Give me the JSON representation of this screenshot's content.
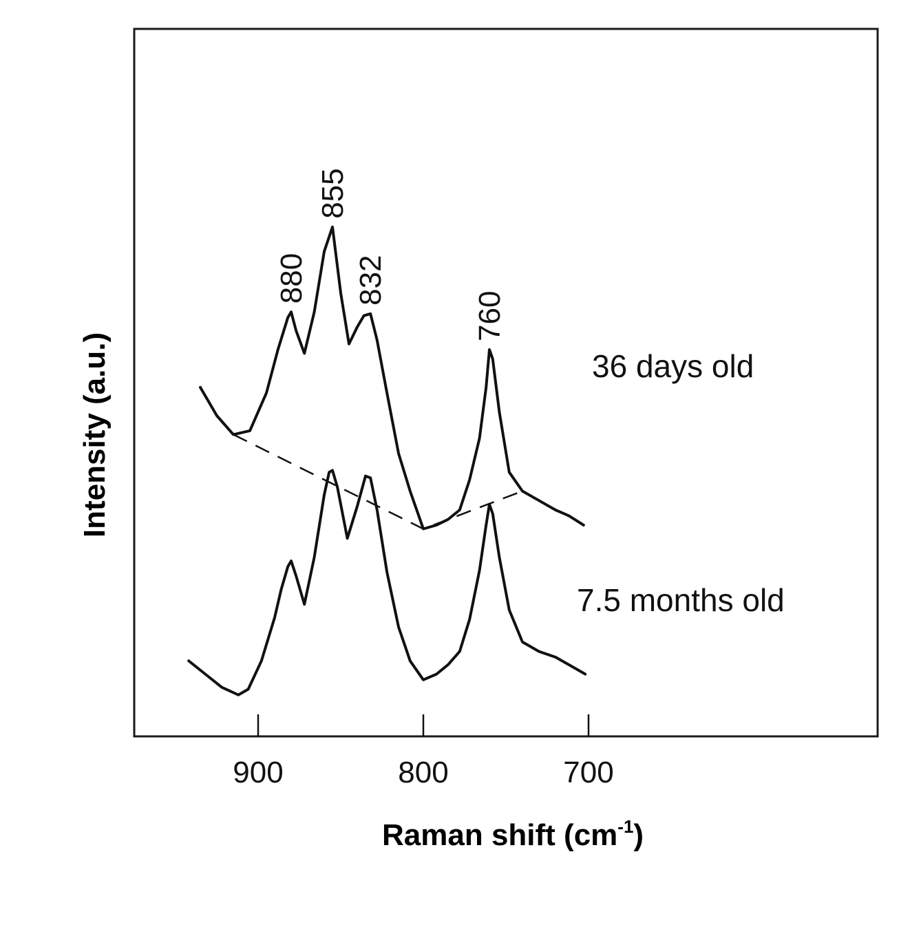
{
  "chart_data": {
    "type": "line",
    "title": "",
    "xlabel": "Raman shift (cm",
    "xlabel_sup": "-1",
    "xlabel_close": ")",
    "ylabel": "Intensity (a.u.)",
    "x_reversed": true,
    "x_ticks": [
      {
        "value": 900,
        "label": "900"
      },
      {
        "value": 800,
        "label": "800"
      },
      {
        "value": 700,
        "label": "700"
      }
    ],
    "y_ticks_shown": false,
    "grid": false,
    "series": [
      {
        "name": "36 days old",
        "x": [
          935,
          925,
          915,
          905,
          895,
          888,
          882,
          880,
          877,
          872,
          866,
          860,
          855,
          850,
          845,
          840,
          836,
          832,
          828,
          822,
          815,
          808,
          800,
          792,
          785,
          778,
          772,
          766,
          762,
          760,
          758,
          754,
          748,
          740,
          730,
          720,
          712,
          703
        ],
        "y": [
          1.85,
          1.7,
          1.6,
          1.62,
          1.82,
          2.05,
          2.22,
          2.25,
          2.15,
          2.03,
          2.25,
          2.57,
          2.7,
          2.35,
          2.08,
          2.17,
          2.23,
          2.24,
          2.1,
          1.82,
          1.5,
          1.3,
          1.1,
          1.12,
          1.15,
          1.2,
          1.36,
          1.58,
          1.85,
          2.05,
          2.0,
          1.72,
          1.4,
          1.3,
          1.25,
          1.2,
          1.17,
          1.12
        ]
      },
      {
        "name": "7.5 months old",
        "x": [
          942,
          932,
          922,
          912,
          906,
          898,
          890,
          886,
          882,
          880,
          877,
          872,
          866,
          860,
          857,
          855,
          852,
          846,
          840,
          835,
          832,
          828,
          822,
          815,
          808,
          800,
          792,
          785,
          778,
          772,
          766,
          762,
          760,
          758,
          754,
          748,
          740,
          730,
          720,
          712,
          702
        ],
        "y": [
          0.4,
          0.33,
          0.26,
          0.22,
          0.25,
          0.4,
          0.63,
          0.78,
          0.9,
          0.93,
          0.85,
          0.7,
          0.95,
          1.28,
          1.4,
          1.41,
          1.32,
          1.05,
          1.22,
          1.38,
          1.37,
          1.2,
          0.87,
          0.58,
          0.4,
          0.3,
          0.33,
          0.38,
          0.45,
          0.62,
          0.88,
          1.12,
          1.23,
          1.18,
          0.95,
          0.67,
          0.5,
          0.45,
          0.42,
          0.38,
          0.33
        ]
      }
    ],
    "baseline": {
      "x": [
        915,
        800,
        740
      ],
      "y": [
        1.6,
        1.1,
        1.3
      ]
    },
    "peak_labels": [
      {
        "x": 880,
        "y": 2.25,
        "label": "880"
      },
      {
        "x": 855,
        "y": 2.7,
        "label": "855"
      },
      {
        "x": 832,
        "y": 2.24,
        "label": "832"
      },
      {
        "x": 760,
        "y": 2.05,
        "label": "760"
      }
    ],
    "xlim": [
      975,
      525
    ],
    "ylim": [
      0,
      3.75
    ]
  }
}
